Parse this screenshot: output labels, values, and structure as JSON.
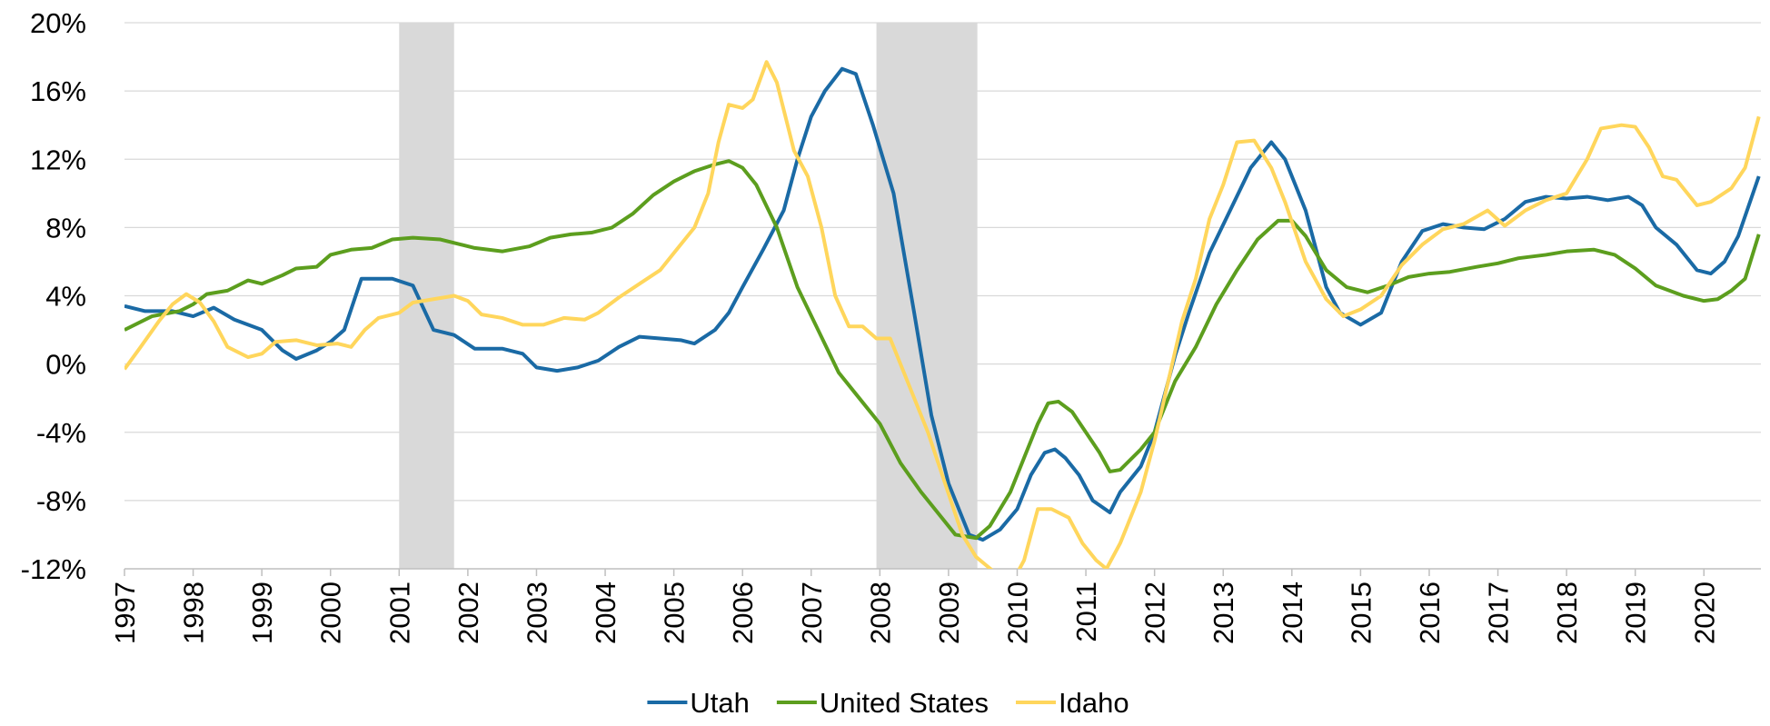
{
  "chart_data": {
    "type": "line",
    "xlim": [
      1997,
      2020.83
    ],
    "xticks": [
      1997,
      1998,
      1999,
      2000,
      2001,
      2002,
      2003,
      2004,
      2005,
      2006,
      2007,
      2008,
      2009,
      2010,
      2011,
      2012,
      2013,
      2014,
      2015,
      2016,
      2017,
      2018,
      2019,
      2020
    ],
    "ylim": [
      -12,
      20
    ],
    "yticks": [
      {
        "value": -12,
        "label": "-12%"
      },
      {
        "value": -8,
        "label": "-8%"
      },
      {
        "value": -4,
        "label": "-4%"
      },
      {
        "value": 0,
        "label": "0%"
      },
      {
        "value": 4,
        "label": "4%"
      },
      {
        "value": 8,
        "label": "8%"
      },
      {
        "value": 12,
        "label": "12%"
      },
      {
        "value": 16,
        "label": "16%"
      },
      {
        "value": 20,
        "label": "20%"
      }
    ],
    "grid": true,
    "shaded_ranges": [
      [
        2001.0,
        2001.8
      ],
      [
        2007.95,
        2009.42
      ]
    ],
    "shade_color": "#d9d9d9",
    "series": [
      {
        "name": "Utah",
        "color": "#1a6aa5",
        "x": [
          1997.0,
          1997.3,
          1997.7,
          1998.0,
          1998.3,
          1998.6,
          1999.0,
          1999.3,
          1999.5,
          1999.8,
          2000.0,
          2000.2,
          2000.45,
          2000.7,
          2000.9,
          2001.2,
          2001.5,
          2001.8,
          2002.1,
          2002.5,
          2002.8,
          2003.0,
          2003.3,
          2003.6,
          2003.9,
          2004.2,
          2004.5,
          2004.8,
          2005.1,
          2005.3,
          2005.6,
          2005.8,
          2006.0,
          2006.3,
          2006.6,
          2006.8,
          2007.0,
          2007.2,
          2007.45,
          2007.65,
          2007.9,
          2008.2,
          2008.5,
          2008.75,
          2009.0,
          2009.3,
          2009.5,
          2009.75,
          2010.0,
          2010.2,
          2010.4,
          2010.55,
          2010.7,
          2010.9,
          2011.1,
          2011.35,
          2011.5,
          2011.8,
          2012.0,
          2012.3,
          2012.5,
          2012.8,
          2013.1,
          2013.4,
          2013.7,
          2013.9,
          2014.2,
          2014.5,
          2014.7,
          2015.0,
          2015.3,
          2015.6,
          2015.9,
          2016.2,
          2016.5,
          2016.8,
          2017.1,
          2017.4,
          2017.7,
          2018.0,
          2018.3,
          2018.6,
          2018.9,
          2019.1,
          2019.3,
          2019.6,
          2019.9,
          2020.1,
          2020.3,
          2020.5,
          2020.8
        ],
        "values": [
          3.4,
          3.1,
          3.1,
          2.8,
          3.3,
          2.6,
          2.0,
          0.8,
          0.3,
          0.8,
          1.3,
          2.0,
          5.0,
          5.0,
          5.0,
          4.6,
          2.0,
          1.7,
          0.9,
          0.9,
          0.6,
          -0.2,
          -0.4,
          -0.2,
          0.2,
          1.0,
          1.6,
          1.5,
          1.4,
          1.2,
          2.0,
          3.0,
          4.5,
          6.7,
          9.0,
          12.0,
          14.5,
          16.0,
          17.3,
          17.0,
          14.0,
          10.0,
          3.0,
          -3.0,
          -7.0,
          -10.0,
          -10.3,
          -9.7,
          -8.5,
          -6.5,
          -5.2,
          -5.0,
          -5.5,
          -6.5,
          -8.0,
          -8.7,
          -7.5,
          -6.0,
          -4.0,
          0.5,
          3.0,
          6.5,
          9.0,
          11.5,
          13.0,
          12.0,
          9.0,
          4.5,
          3.0,
          2.3,
          3.0,
          6.0,
          7.8,
          8.2,
          8.0,
          7.9,
          8.5,
          9.5,
          9.8,
          9.7,
          9.8,
          9.6,
          9.8,
          9.3,
          8.0,
          7.0,
          5.5,
          5.3,
          6.0,
          7.5,
          11.0
        ]
      },
      {
        "name": "United States",
        "color": "#5c9e1e",
        "x": [
          1997.0,
          1997.4,
          1997.8,
          1998.0,
          1998.2,
          1998.5,
          1998.8,
          1999.0,
          1999.3,
          1999.5,
          1999.8,
          2000.0,
          2000.3,
          2000.6,
          2000.9,
          2001.2,
          2001.6,
          2001.9,
          2002.1,
          2002.5,
          2002.9,
          2003.2,
          2003.5,
          2003.8,
          2004.1,
          2004.4,
          2004.7,
          2005.0,
          2005.3,
          2005.6,
          2005.8,
          2006.0,
          2006.2,
          2006.5,
          2006.8,
          2007.1,
          2007.4,
          2007.7,
          2008.0,
          2008.3,
          2008.6,
          2008.9,
          2009.1,
          2009.4,
          2009.6,
          2009.9,
          2010.1,
          2010.3,
          2010.45,
          2010.6,
          2010.8,
          2011.0,
          2011.2,
          2011.35,
          2011.5,
          2011.8,
          2012.0,
          2012.3,
          2012.6,
          2012.9,
          2013.2,
          2013.5,
          2013.8,
          2014.0,
          2014.2,
          2014.5,
          2014.8,
          2015.1,
          2015.4,
          2015.7,
          2016.0,
          2016.3,
          2016.7,
          2017.0,
          2017.3,
          2017.7,
          2018.0,
          2018.4,
          2018.7,
          2019.0,
          2019.3,
          2019.7,
          2020.0,
          2020.2,
          2020.4,
          2020.6,
          2020.8
        ],
        "values": [
          2.0,
          2.8,
          3.1,
          3.5,
          4.1,
          4.3,
          4.9,
          4.7,
          5.2,
          5.6,
          5.7,
          6.4,
          6.7,
          6.8,
          7.3,
          7.4,
          7.3,
          7.0,
          6.8,
          6.6,
          6.9,
          7.4,
          7.6,
          7.7,
          8.0,
          8.8,
          9.9,
          10.7,
          11.3,
          11.7,
          11.9,
          11.5,
          10.5,
          8.0,
          4.5,
          2.0,
          -0.5,
          -2.0,
          -3.5,
          -5.8,
          -7.5,
          -9.0,
          -10.0,
          -10.2,
          -9.5,
          -7.5,
          -5.5,
          -3.5,
          -2.3,
          -2.2,
          -2.8,
          -4.0,
          -5.2,
          -6.3,
          -6.2,
          -5.0,
          -4.0,
          -1.0,
          1.0,
          3.5,
          5.5,
          7.3,
          8.4,
          8.4,
          7.5,
          5.5,
          4.5,
          4.2,
          4.6,
          5.1,
          5.3,
          5.4,
          5.7,
          5.9,
          6.2,
          6.4,
          6.6,
          6.7,
          6.4,
          5.6,
          4.6,
          4.0,
          3.7,
          3.8,
          4.3,
          5.0,
          7.6
        ]
      },
      {
        "name": "Idaho",
        "color": "#ffd65c",
        "x": [
          1997.0,
          1997.2,
          1997.5,
          1997.7,
          1997.9,
          1998.1,
          1998.3,
          1998.5,
          1998.8,
          1999.0,
          1999.2,
          1999.5,
          1999.8,
          2000.1,
          2000.3,
          2000.5,
          2000.7,
          2001.0,
          2001.2,
          2001.5,
          2001.8,
          2002.0,
          2002.2,
          2002.5,
          2002.8,
          2003.1,
          2003.4,
          2003.7,
          2003.9,
          2004.2,
          2004.5,
          2004.8,
          2005.0,
          2005.3,
          2005.5,
          2005.65,
          2005.8,
          2006.0,
          2006.15,
          2006.35,
          2006.5,
          2006.75,
          2006.95,
          2007.15,
          2007.35,
          2007.55,
          2007.75,
          2007.95,
          2008.15,
          2008.4,
          2008.7,
          2008.95,
          2009.2,
          2009.4,
          2009.55,
          2009.7,
          2009.9,
          2010.1,
          2010.3,
          2010.5,
          2010.75,
          2010.95,
          2011.15,
          2011.3,
          2011.5,
          2011.8,
          2012.0,
          2012.2,
          2012.4,
          2012.6,
          2012.8,
          2013.0,
          2013.2,
          2013.45,
          2013.7,
          2013.9,
          2014.2,
          2014.5,
          2014.75,
          2015.0,
          2015.3,
          2015.6,
          2015.9,
          2016.2,
          2016.5,
          2016.85,
          2017.1,
          2017.4,
          2017.7,
          2018.0,
          2018.3,
          2018.5,
          2018.8,
          2019.0,
          2019.2,
          2019.4,
          2019.6,
          2019.9,
          2020.1,
          2020.4,
          2020.6,
          2020.8
        ],
        "values": [
          -0.3,
          0.8,
          2.5,
          3.5,
          4.1,
          3.6,
          2.5,
          1.0,
          0.4,
          0.6,
          1.3,
          1.4,
          1.1,
          1.2,
          1.0,
          2.0,
          2.7,
          3.0,
          3.6,
          3.8,
          4.0,
          3.7,
          2.9,
          2.7,
          2.3,
          2.3,
          2.7,
          2.6,
          3.0,
          3.9,
          4.7,
          5.5,
          6.5,
          8.0,
          10.0,
          13.0,
          15.2,
          15.0,
          15.5,
          17.7,
          16.5,
          12.5,
          11.0,
          8.0,
          4.0,
          2.2,
          2.2,
          1.5,
          1.5,
          -1.0,
          -4.0,
          -7.0,
          -10.0,
          -11.3,
          -11.8,
          -12.3,
          -13.0,
          -11.5,
          -8.5,
          -8.5,
          -9.0,
          -10.5,
          -11.5,
          -12.0,
          -10.5,
          -7.5,
          -4.5,
          -1.0,
          2.5,
          5.0,
          8.5,
          10.5,
          13.0,
          13.1,
          11.5,
          9.5,
          6.0,
          3.8,
          2.8,
          3.2,
          4.0,
          5.8,
          7.0,
          7.9,
          8.2,
          9.0,
          8.1,
          9.0,
          9.6,
          10.0,
          12.0,
          13.8,
          14.0,
          13.9,
          12.7,
          11.0,
          10.8,
          9.3,
          9.5,
          10.3,
          11.5,
          14.5
        ]
      }
    ]
  }
}
